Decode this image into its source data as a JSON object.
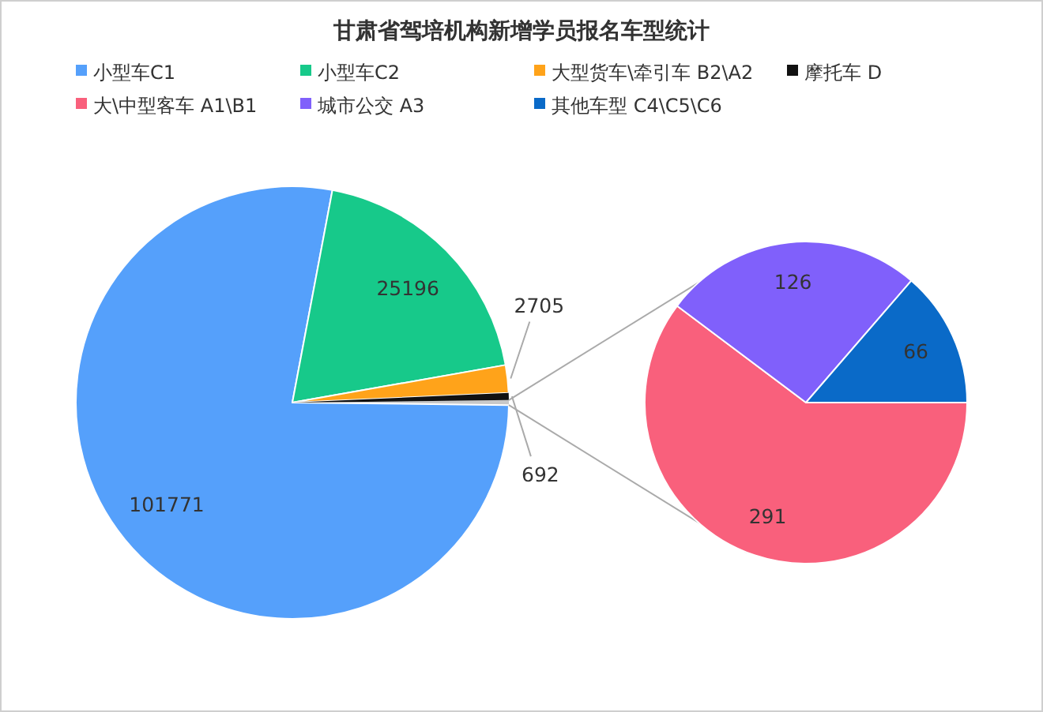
{
  "chart_data": [
    {
      "type": "pie",
      "title": "甘肃省驾培机构新增学员报名车型统计",
      "legend": "top",
      "categories": [
        "小型车C1",
        "小型车C2",
        "大型货车\\牵引车 B2\\A2",
        "摩托车 D",
        null
      ],
      "values": [
        101771,
        25196,
        2705,
        692,
        483
      ],
      "value_labels": [
        "101771",
        "25196",
        "2705",
        "692",
        null
      ],
      "colors": [
        "#55a0fb",
        "#17c98a",
        "#ffa31a",
        "#111111",
        "#c8c8c8"
      ]
    },
    {
      "type": "pie",
      "legend": "top",
      "data_labels": true,
      "categories": [
        "大\\中型客车 A1\\B1",
        "城市公交 A3",
        "其他车型 C4\\C5\\C6"
      ],
      "values": [
        291,
        126,
        66
      ],
      "colors": [
        "#f9607c",
        "#8060fb",
        "#0a6ac8"
      ]
    }
  ]
}
